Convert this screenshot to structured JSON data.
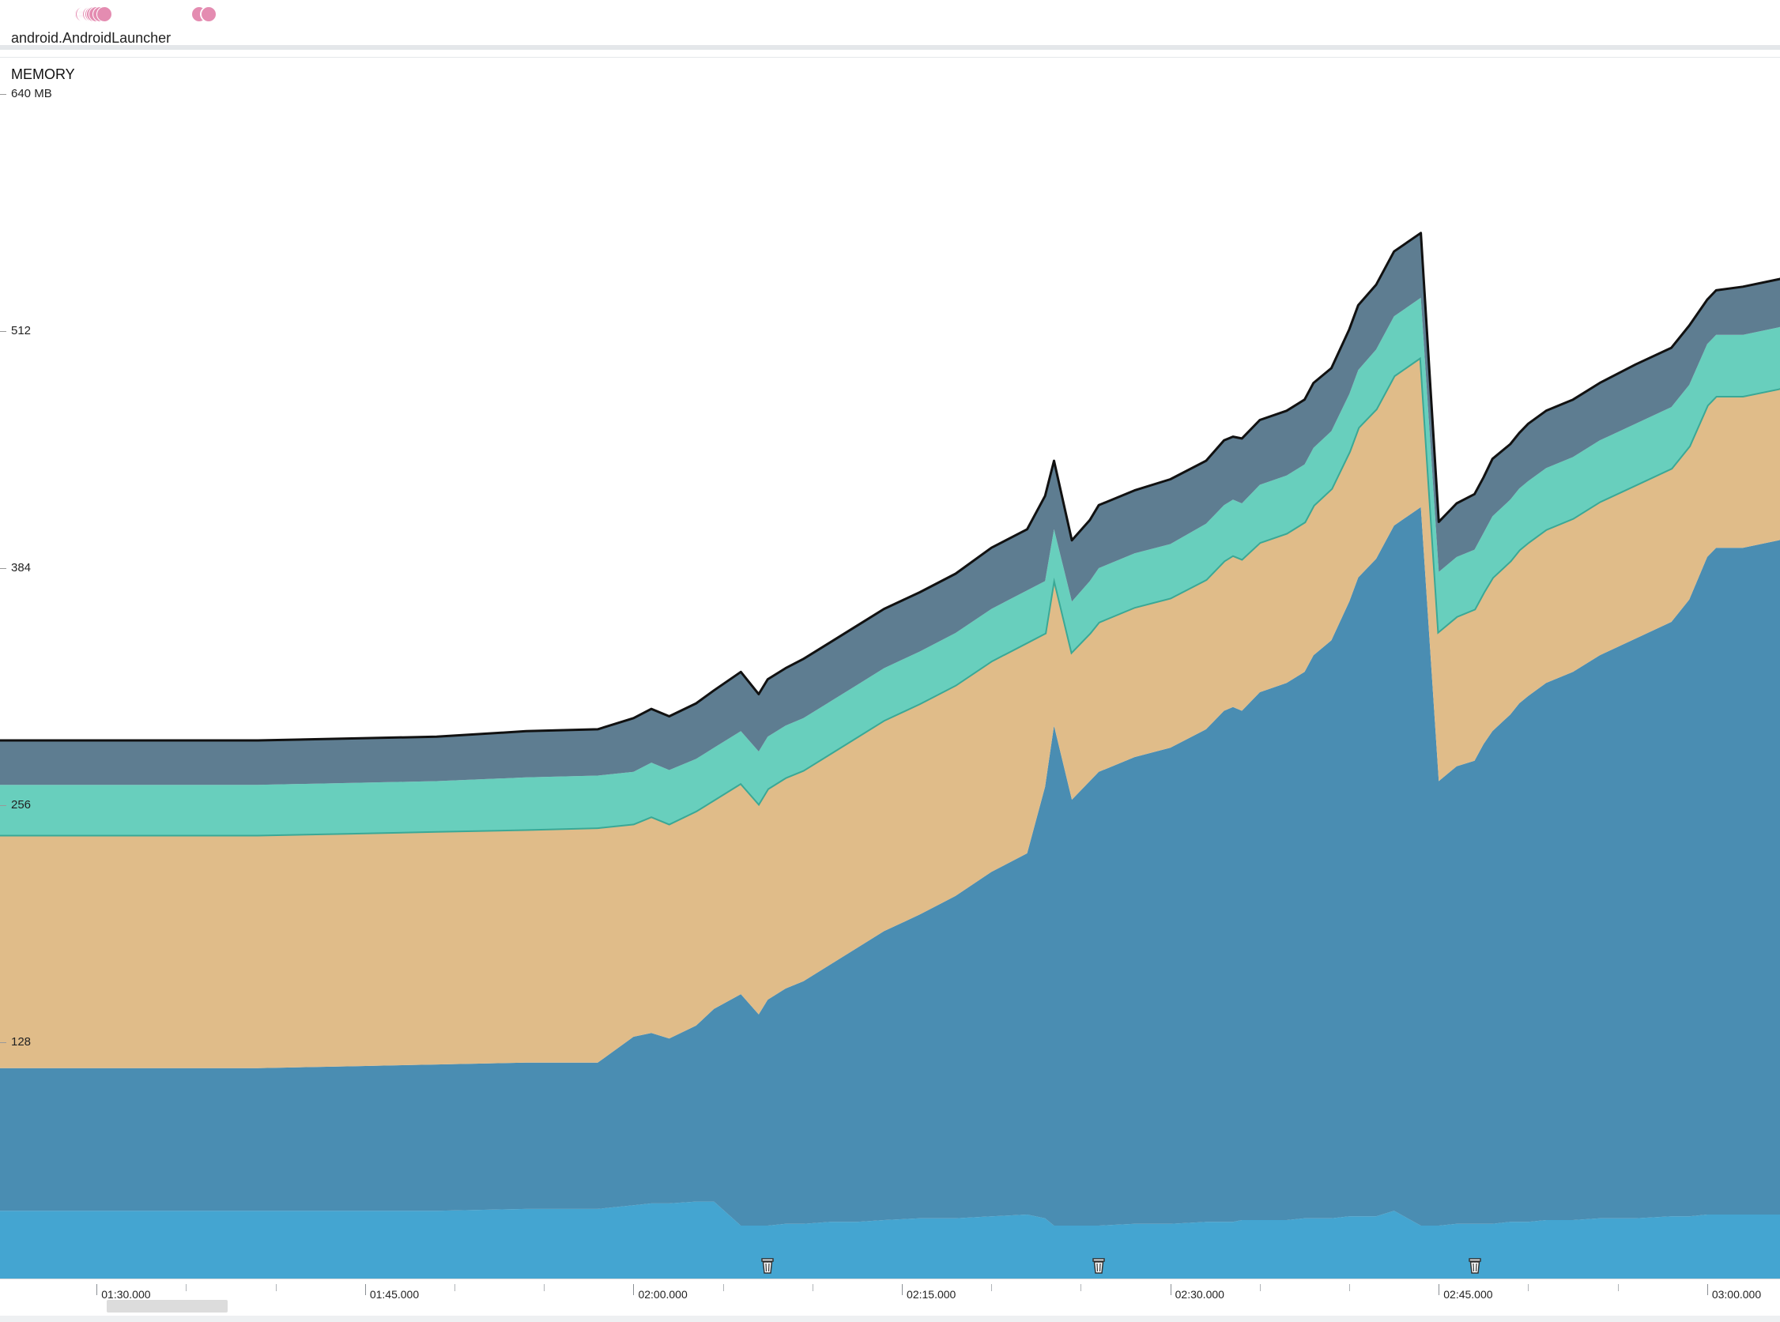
{
  "header": {
    "app_name": "android.AndroidLauncher"
  },
  "events": {
    "dot_color": "#e48cb1",
    "times_sec": [
      5349,
      5350,
      5351,
      5352,
      5354,
      5360,
      5362,
      5364,
      5366,
      5368,
      5371,
      5374,
      5376,
      5379,
      5383,
      5386,
      5391,
      5398,
      5413,
      5426,
      5744,
      5773,
      5775
    ]
  },
  "memory": {
    "title": "MEMORY",
    "y_axis": {
      "unit": "MB",
      "ticks": [
        {
          "value": 640,
          "label": "640 MB"
        },
        {
          "value": 512,
          "label": "512"
        },
        {
          "value": 384,
          "label": "384"
        },
        {
          "value": 256,
          "label": "256"
        },
        {
          "value": 128,
          "label": "128"
        }
      ]
    }
  },
  "chart_data": {
    "type": "area",
    "stacked": true,
    "title": "MEMORY",
    "xlabel": "",
    "ylabel": "",
    "ylim": [
      0,
      640
    ],
    "xlim": [
      "01:24.600",
      "03:04.800"
    ],
    "x_unit": "seconds (mm:ss)",
    "x_ticks": [
      "01:30.000",
      "01:45.000",
      "02:00.000",
      "02:15.000",
      "02:30.000",
      "02:45.000",
      "03:00.000"
    ],
    "x": [
      84.6,
      89.0,
      94.0,
      99.0,
      104.0,
      109.0,
      114.0,
      118.0,
      120.0,
      121.0,
      122.0,
      123.5,
      124.5,
      126.0,
      127.0,
      127.5,
      128.5,
      129.5,
      131.0,
      132.5,
      134.0,
      136.0,
      138.0,
      140.0,
      142.0,
      143.0,
      143.5,
      144.5,
      145.5,
      146.0,
      148.0,
      150.0,
      152.0,
      153.0,
      153.5,
      154.0,
      155.0,
      156.5,
      157.5,
      158.0,
      159.0,
      160.0,
      160.5,
      161.5,
      162.5,
      164.0,
      165.0,
      166.0,
      167.0,
      167.5,
      168.0,
      169.0,
      169.5,
      170.0,
      171.0,
      172.5,
      174.0,
      176.0,
      178.0,
      179.0,
      180.0,
      180.5,
      182.0,
      184.0,
      185.0,
      185.5,
      186.0,
      187.5,
      188.5,
      189.5,
      190.5,
      191.5,
      192.5,
      193.5,
      195.0,
      196.5,
      197.5,
      198.5,
      199.5,
      200.5,
      201.5,
      202.0,
      202.8,
      204.8
    ],
    "series": [
      {
        "name": "",
        "color": "#44a5d1",
        "values": [
          37,
          37,
          37,
          37,
          37,
          37,
          38,
          38,
          40,
          41,
          41,
          42,
          42,
          29,
          29,
          29,
          30,
          30,
          31,
          31,
          32,
          33,
          33,
          34,
          35,
          33,
          29,
          29,
          29,
          29,
          30,
          30,
          31,
          31,
          31,
          32,
          32,
          32,
          33,
          33,
          33,
          34,
          34,
          34,
          37,
          29,
          29,
          30,
          30,
          30,
          30,
          31,
          31,
          31,
          32,
          32,
          33,
          33,
          34,
          34,
          35,
          35,
          35,
          35,
          35,
          35,
          35,
          36,
          36,
          36,
          36,
          36,
          36,
          36,
          36,
          37,
          37,
          37,
          37,
          37,
          37,
          38,
          38,
          40
        ]
      },
      {
        "name": "",
        "color": "#4a8db2",
        "values": [
          77,
          77,
          77,
          77,
          78,
          79,
          79,
          79,
          91,
          92,
          89,
          95,
          104,
          125,
          114,
          122,
          127,
          131,
          139,
          148,
          156,
          164,
          174,
          186,
          195,
          233,
          270,
          230,
          240,
          245,
          252,
          257,
          266,
          276,
          278,
          275,
          285,
          290,
          295,
          304,
          312,
          332,
          345,
          355,
          370,
          388,
          240,
          247,
          250,
          259,
          266,
          274,
          280,
          284,
          290,
          296,
          304,
          313,
          321,
          333,
          355,
          360,
          360,
          364,
          367,
          371,
          374,
          375,
          377,
          381,
          385,
          388,
          394,
          401,
          414,
          421,
          362,
          366,
          370,
          379,
          383,
          385,
          386,
          385
        ]
      },
      {
        "name": "",
        "color": "#e0bc89",
        "values": [
          126,
          126,
          126,
          126,
          126,
          126,
          126,
          127,
          115,
          117,
          116,
          116,
          113,
          114,
          114,
          114,
          114,
          114,
          114,
          114,
          114,
          114,
          114,
          114,
          114,
          83,
          80,
          80,
          80,
          81,
          81,
          81,
          81,
          81,
          82,
          82,
          81,
          81,
          81,
          81,
          82,
          81,
          81,
          81,
          81,
          81,
          81,
          81,
          82,
          82,
          83,
          83,
          83,
          83,
          83,
          83,
          83,
          83,
          83,
          83,
          82,
          82,
          82,
          82,
          82,
          82,
          83,
          82,
          82,
          82,
          82,
          82,
          82,
          82,
          82,
          82,
          82,
          82,
          82,
          82,
          82,
          82,
          82,
          82
        ]
      },
      {
        "name": "",
        "color": "#68cfbd",
        "values": [
          27,
          27,
          27,
          27,
          27,
          27,
          28,
          28,
          28,
          29,
          29,
          28,
          28,
          28,
          28,
          28,
          28,
          28,
          28,
          28,
          28,
          28,
          28,
          28,
          28,
          28,
          26,
          27,
          28,
          29,
          29,
          29,
          30,
          30,
          30,
          30,
          31,
          31,
          31,
          31,
          31,
          31,
          31,
          32,
          32,
          32,
          32,
          32,
          32,
          32,
          33,
          33,
          33,
          33,
          33,
          33,
          33,
          33,
          33,
          33,
          33,
          33,
          33,
          33,
          33,
          33,
          34,
          34,
          34,
          34,
          34,
          34,
          34,
          34,
          34,
          34,
          34,
          34,
          34,
          34,
          34,
          34,
          34,
          34
        ]
      },
      {
        "name": "",
        "color": "#5e7d91",
        "values": [
          24,
          24,
          24,
          24,
          24,
          24,
          25,
          25,
          29,
          29,
          29,
          30,
          31,
          32,
          31,
          31,
          31,
          32,
          32,
          32,
          32,
          32,
          32,
          33,
          33,
          46,
          37,
          33,
          33,
          34,
          34,
          35,
          34,
          35,
          34,
          35,
          35,
          35,
          35,
          35,
          34,
          35,
          35,
          35,
          35,
          35,
          27,
          29,
          30,
          30,
          31,
          30,
          30,
          31,
          31,
          31,
          31,
          32,
          32,
          32,
          24,
          24,
          26,
          26,
          26,
          27,
          26,
          26,
          26,
          27,
          27,
          27,
          27,
          28,
          29,
          29,
          30,
          30,
          30,
          31,
          30,
          31,
          31,
          31
        ]
      }
    ],
    "gc_events_sec": [
      127.5,
      146.0,
      167.0
    ]
  },
  "timeline": {
    "labels": [
      "01:30.000",
      "01:45.000",
      "02:00.000",
      "02:15.000",
      "02:30.000",
      "02:45.000",
      "03:00.000"
    ]
  }
}
